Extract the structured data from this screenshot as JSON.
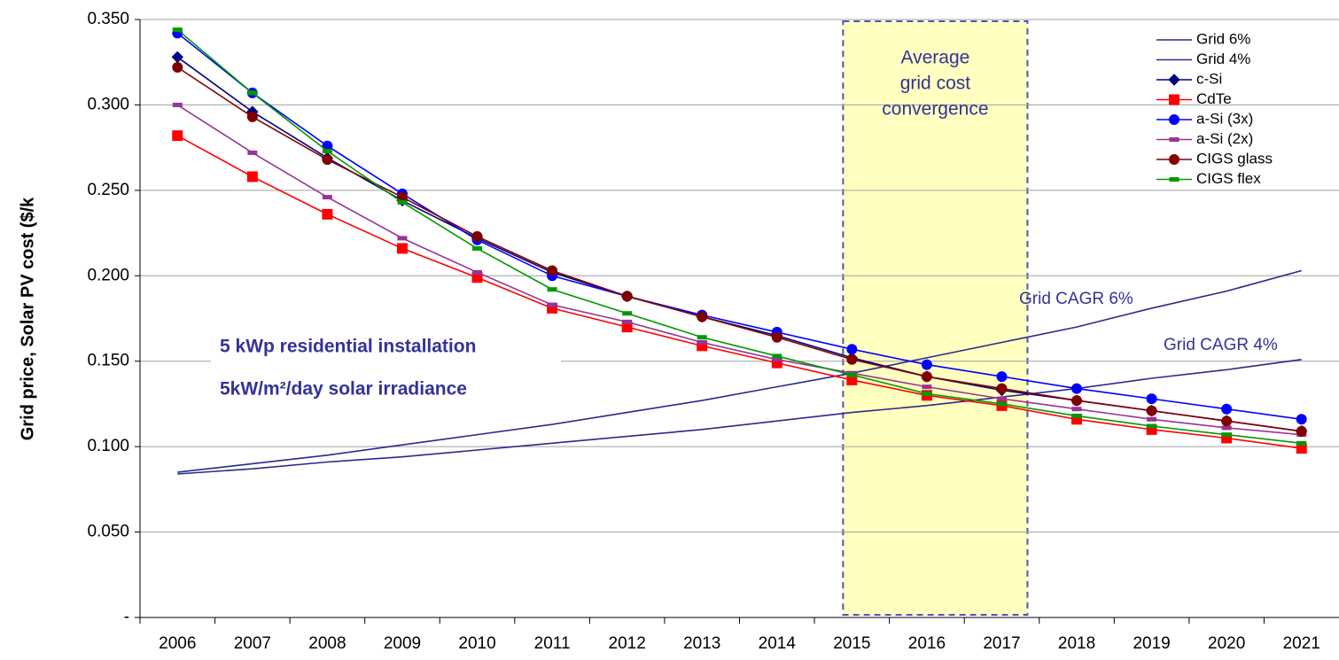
{
  "chart_data": {
    "type": "line",
    "y_label": "Grid price, Solar PV cost ($/k",
    "categories": [
      "2006",
      "2007",
      "2008",
      "2009",
      "2010",
      "2011",
      "2012",
      "2013",
      "2014",
      "2015",
      "2016",
      "2017",
      "2018",
      "2019",
      "2020",
      "2021"
    ],
    "series": [
      {
        "name": "Grid 6%",
        "color": "#2a2a8a",
        "marker": "none",
        "values": [
          0.085,
          0.09,
          0.095,
          0.101,
          0.107,
          0.113,
          0.12,
          0.127,
          0.135,
          0.143,
          0.152,
          0.161,
          0.17,
          0.181,
          0.191,
          0.203
        ]
      },
      {
        "name": "Grid 4%",
        "color": "#2a2a8a",
        "marker": "none",
        "values": [
          0.084,
          0.087,
          0.091,
          0.094,
          0.098,
          0.102,
          0.106,
          0.11,
          0.115,
          0.12,
          0.124,
          0.129,
          0.134,
          0.14,
          0.145,
          0.151
        ]
      },
      {
        "name": "c-Si",
        "color": "#000080",
        "marker": "diamond",
        "values": [
          0.328,
          0.296,
          0.269,
          0.244,
          0.222,
          0.202,
          0.188,
          0.176,
          0.165,
          0.152,
          0.141,
          0.133,
          0.127,
          0.121,
          0.115,
          0.109
        ]
      },
      {
        "name": "CdTe",
        "color": "#ff0000",
        "marker": "square",
        "values": [
          0.282,
          0.258,
          0.236,
          0.216,
          0.199,
          0.181,
          0.17,
          0.159,
          0.149,
          0.139,
          0.13,
          0.124,
          0.116,
          0.11,
          0.105,
          0.099
        ]
      },
      {
        "name": "a-Si (3x)",
        "color": "#0000ff",
        "marker": "circle",
        "values": [
          0.342,
          0.307,
          0.276,
          0.248,
          0.221,
          0.2,
          0.188,
          0.177,
          0.167,
          0.157,
          0.148,
          0.141,
          0.134,
          0.128,
          0.122,
          0.116
        ]
      },
      {
        "name": "a-Si (2x)",
        "color": "#993399",
        "marker": "dash",
        "values": [
          0.3,
          0.272,
          0.246,
          0.222,
          0.202,
          0.183,
          0.173,
          0.161,
          0.151,
          0.143,
          0.135,
          0.128,
          0.122,
          0.116,
          0.111,
          0.107
        ]
      },
      {
        "name": "CIGS glass",
        "color": "#800000",
        "marker": "circle",
        "values": [
          0.322,
          0.293,
          0.268,
          0.246,
          0.223,
          0.203,
          0.188,
          0.176,
          0.164,
          0.151,
          0.141,
          0.134,
          0.127,
          0.121,
          0.115,
          0.109
        ]
      },
      {
        "name": "CIGS flex",
        "color": "#009900",
        "marker": "dash",
        "values": [
          0.344,
          0.307,
          0.273,
          0.243,
          0.216,
          0.192,
          0.178,
          0.164,
          0.153,
          0.142,
          0.131,
          0.125,
          0.118,
          0.112,
          0.107,
          0.102
        ]
      }
    ],
    "ylim": [
      0,
      0.35
    ],
    "yticks": [
      {
        "value": 0,
        "label": "-"
      },
      {
        "value": 0.05,
        "label": "0.050"
      },
      {
        "value": 0.1,
        "label": "0.100"
      },
      {
        "value": 0.15,
        "label": "0.150"
      },
      {
        "value": 0.2,
        "label": "0.200"
      },
      {
        "value": 0.25,
        "label": "0.250"
      },
      {
        "value": 0.3,
        "label": "0.300"
      },
      {
        "value": 0.35,
        "label": "0.350"
      }
    ],
    "grid": true,
    "legend": "upper right",
    "annotations": {
      "convergence": [
        "Average",
        "grid cost",
        "convergence"
      ],
      "installation": "5 kWp residential installation",
      "irradiance": "5kW/m²/day solar irradiance",
      "cagr6": "Grid CAGR 6%",
      "cagr4": "Grid CAGR 4%"
    }
  }
}
